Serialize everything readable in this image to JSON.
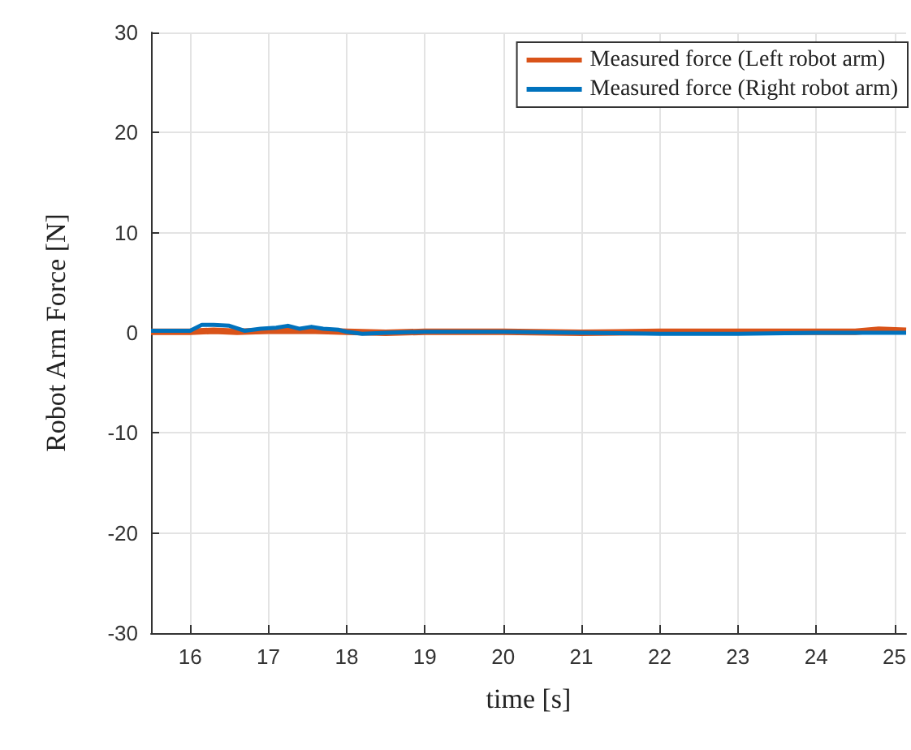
{
  "chart_data": {
    "type": "line",
    "xlabel": "time [s]",
    "ylabel": "Robot Arm Force [N]",
    "xlim": [
      15.5,
      25.15
    ],
    "xticks": [
      16,
      17,
      18,
      19,
      20,
      21,
      22,
      23,
      24,
      25
    ],
    "ylim": [
      -30,
      30
    ],
    "yticks": [
      -30,
      -20,
      -10,
      0,
      10,
      20,
      30
    ],
    "grid": true,
    "legend": "top right",
    "line_style": "solid",
    "marker": "none",
    "series": [
      {
        "name": "Measured force (Left robot arm)",
        "color": "#d95319",
        "x": [
          15.5,
          16,
          16.3,
          16.6,
          17,
          17.3,
          17.6,
          18,
          18.5,
          19,
          20,
          21,
          22,
          23,
          24,
          24.5,
          24.8,
          25.15
        ],
        "values": [
          0.1,
          0.1,
          0.2,
          0.1,
          0.2,
          0.2,
          0.2,
          0.1,
          0,
          0.1,
          0.1,
          0,
          0.1,
          0.1,
          0.1,
          0.1,
          0.3,
          0.2
        ]
      },
      {
        "name": "Measured force (Right robot arm)",
        "color": "#0072bd",
        "x": [
          15.5,
          16,
          16.15,
          16.3,
          16.5,
          16.7,
          16.9,
          17.1,
          17.25,
          17.4,
          17.55,
          17.7,
          17.9,
          18,
          18.2,
          18.5,
          19,
          20,
          21,
          22,
          23,
          24,
          25.15
        ],
        "values": [
          0.2,
          0.2,
          0.8,
          0.8,
          0.7,
          0.2,
          0.4,
          0.5,
          0.7,
          0.4,
          0.6,
          0.4,
          0.3,
          0.1,
          -0.1,
          0,
          0.1,
          0.1,
          0,
          -0.1,
          -0.1,
          0,
          0
        ]
      }
    ]
  }
}
